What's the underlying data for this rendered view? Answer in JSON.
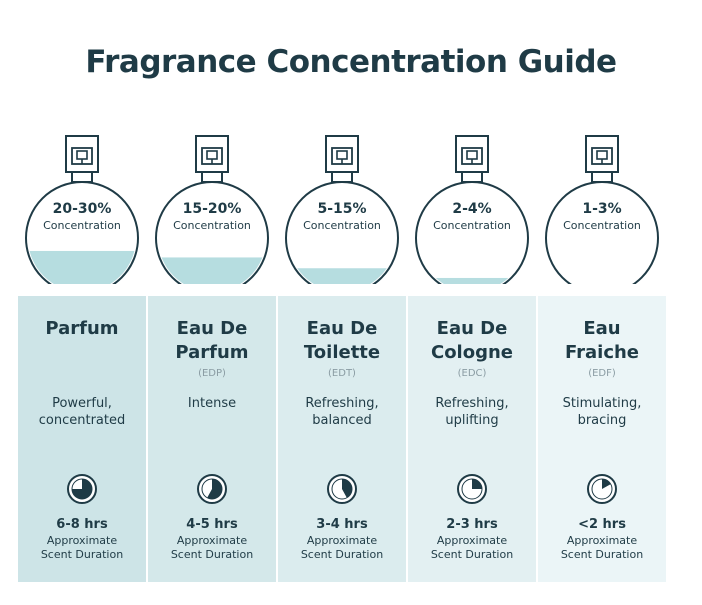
{
  "title": "Fragrance Concentration Guide",
  "duration_label": "Approximate Scent Duration",
  "colors": {
    "text": "#1f3b46",
    "liquid": "#b6dde0",
    "panel_dark": "#cde4e7",
    "panel_light": "#eef6f8",
    "abbr": "#8a9ca3"
  },
  "fragrances": [
    {
      "pct": "20-30%",
      "conc_label": "Concentration",
      "fill": 0.38,
      "name_lines": [
        "Parfum",
        ""
      ],
      "abbr": "",
      "desc_lines": [
        "Powerful,",
        "concentrated"
      ],
      "hours": "6-8 hrs",
      "clock_fraction": 0.75
    },
    {
      "pct": "15-20%",
      "conc_label": "Concentration",
      "fill": 0.32,
      "name_lines": [
        "Eau De",
        "Parfum"
      ],
      "abbr": "(EDP)",
      "desc_lines": [
        "Intense",
        ""
      ],
      "hours": "4-5 hrs",
      "clock_fraction": 0.58
    },
    {
      "pct": "5-15%",
      "conc_label": "Concentration",
      "fill": 0.22,
      "name_lines": [
        "Eau De",
        "Toilette"
      ],
      "abbr": "(EDT)",
      "desc_lines": [
        "Refreshing,",
        "balanced"
      ],
      "hours": "3-4 hrs",
      "clock_fraction": 0.42
    },
    {
      "pct": "2-4%",
      "conc_label": "Concentration",
      "fill": 0.13,
      "name_lines": [
        "Eau De",
        "Cologne"
      ],
      "abbr": "(EDC)",
      "desc_lines": [
        "Refreshing,",
        "uplifting"
      ],
      "hours": "2-3 hrs",
      "clock_fraction": 0.25
    },
    {
      "pct": "1-3%",
      "conc_label": "Concentration",
      "fill": 0.07,
      "name_lines": [
        "Eau",
        "Fraiche"
      ],
      "abbr": "(EDF)",
      "desc_lines": [
        "Stimulating,",
        "bracing"
      ],
      "hours": "<2 hrs",
      "clock_fraction": 0.17
    }
  ]
}
